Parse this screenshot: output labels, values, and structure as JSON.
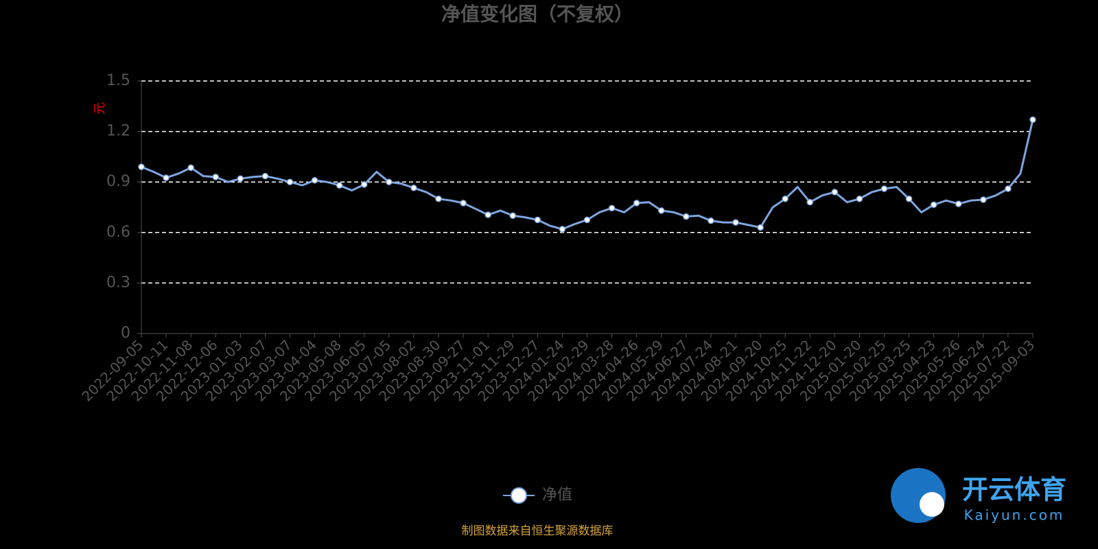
{
  "chart_data": {
    "type": "line",
    "title": "净值变化图（不复权）",
    "y_label": "元",
    "categories": [
      "2022-09-05",
      null,
      "2022-10-11",
      null,
      "2022-11-08",
      null,
      "2022-12-06",
      null,
      "2023-01-03",
      null,
      "2023-02-07",
      null,
      "2023-03-07",
      null,
      "2023-04-04",
      null,
      "2023-05-08",
      null,
      "2023-06-05",
      null,
      "2023-07-05",
      null,
      "2023-08-02",
      null,
      "2023-08-30",
      null,
      "2023-09-27",
      null,
      "2023-11-01",
      null,
      "2023-11-29",
      null,
      "2023-12-27",
      null,
      "2024-01-24",
      null,
      "2024-02-29",
      null,
      "2024-03-28",
      null,
      "2024-04-26",
      null,
      "2024-05-29",
      null,
      "2024-06-27",
      null,
      "2024-07-24",
      null,
      "2024-08-21",
      null,
      "2024-09-20",
      null,
      "2024-10-25",
      null,
      "2024-11-22",
      null,
      "2024-12-20",
      null,
      "2025-01-20",
      null,
      "2025-02-25",
      null,
      "2025-03-25",
      null,
      "2025-04-23",
      null,
      "2025-05-26",
      null,
      "2025-06-24",
      null,
      "2025-07-22",
      null,
      "2025-09-03"
    ],
    "series": [
      {
        "name": "净值",
        "color": "#7ea6e0",
        "values": [
          0.99,
          0.96,
          0.925,
          0.95,
          0.985,
          0.935,
          0.93,
          0.9,
          0.92,
          0.93,
          0.935,
          0.92,
          0.9,
          0.88,
          0.91,
          0.9,
          0.88,
          0.85,
          0.885,
          0.96,
          0.9,
          0.89,
          0.865,
          0.84,
          0.8,
          0.79,
          0.775,
          0.74,
          0.705,
          0.73,
          0.7,
          0.69,
          0.675,
          0.64,
          0.62,
          0.65,
          0.675,
          0.72,
          0.745,
          0.72,
          0.775,
          0.78,
          0.73,
          0.72,
          0.695,
          0.7,
          0.67,
          0.66,
          0.66,
          0.645,
          0.63,
          0.75,
          0.8,
          0.87,
          0.78,
          0.82,
          0.84,
          0.78,
          0.8,
          0.84,
          0.86,
          0.87,
          0.8,
          0.72,
          0.765,
          0.79,
          0.77,
          0.79,
          0.795,
          0.82,
          0.86,
          0.95,
          1.27
        ]
      }
    ],
    "ylim": [
      0,
      1.5
    ],
    "yticks": [
      0,
      0.3,
      0.6,
      0.9,
      1.2,
      1.5
    ],
    "grid": true,
    "legend": "bottom",
    "source": "制图数据来自恒生聚源数据库"
  },
  "watermark": {
    "brand": "开云体育",
    "site": "Kaiyun.com"
  }
}
